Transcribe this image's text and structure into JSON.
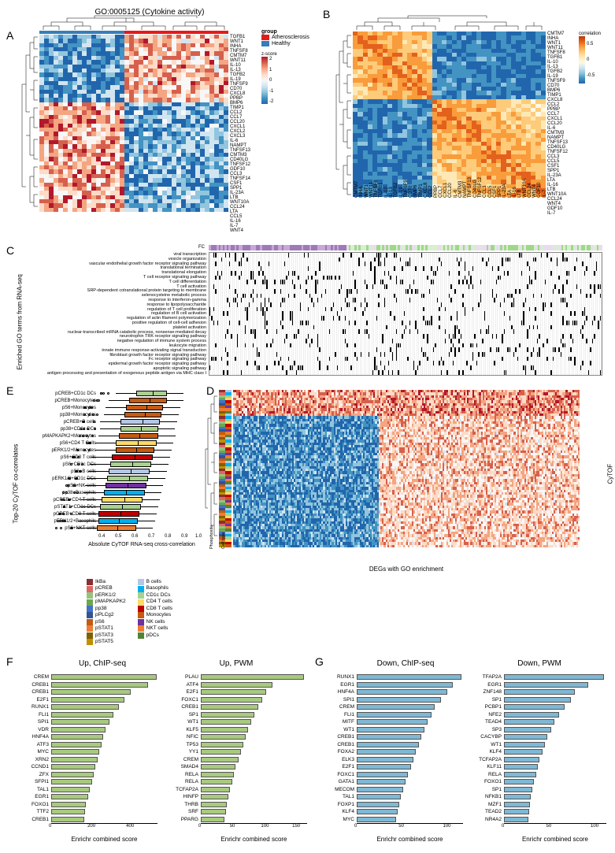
{
  "panelA": {
    "label": "A",
    "title": "GO:0005125 (Cytokine activity)",
    "genes": [
      "TGFB1",
      "WNT1",
      "INHA",
      "TNFSF8",
      "CMTM7",
      "WNT11",
      "IL-10",
      "IL-13",
      "TGFB2",
      "IL-19",
      "TNFSF9",
      "CD70",
      "CXCL8",
      "PPBP",
      "BMP6",
      "TIMP1",
      "CCL2",
      "CCL7",
      "CCL20",
      "CXCL1",
      "CXCL2",
      "CXCL3",
      "IL-6",
      "NAMPT",
      "TNFSF13",
      "CMTM3",
      "CD40LG",
      "TNFSF12",
      "GDF10",
      "CCL3",
      "TNFSF14",
      "CSF1",
      "SPP1",
      "IL-23A",
      "LTB",
      "WNT10A",
      "CCL24",
      "LTA",
      "CCL5",
      "IL-16",
      "IL-7",
      "WNT4"
    ],
    "legendTitle": "group",
    "legendItems": [
      {
        "label": "Atherosclerosis",
        "color": "#e41a1c"
      },
      {
        "label": "Healthy",
        "color": "#377eb8"
      }
    ],
    "zscoreTitle": "z-score",
    "zscoreTicks": [
      "2",
      "1",
      "0",
      "-1",
      "-2"
    ],
    "heatmapColors": [
      "#2166ac",
      "#4393c3",
      "#92c5de",
      "#d1e5f0",
      "#f7f7f7",
      "#fddbc7",
      "#f4a582",
      "#d6604d",
      "#b2182b"
    ],
    "nRows": 42,
    "nCols": 40
  },
  "panelB": {
    "label": "B",
    "genes": [
      "CMTM7",
      "INHA",
      "WNT1",
      "WNT11",
      "TNFSF8",
      "TGFB1",
      "IL-10",
      "IL-13",
      "TGFB2",
      "IL-19",
      "TNFSF9",
      "CD70",
      "BMP6",
      "TIMP1",
      "CXCL8",
      "CCL2",
      "PPBP",
      "CCL7",
      "CXCL1",
      "CCL20",
      "IL-6",
      "CMTM3",
      "NAMPT",
      "TNFSF13",
      "CD40LG",
      "TNFSF12",
      "CCL3",
      "CCL5",
      "CSF1",
      "SPP1",
      "IL-23A",
      "LTA",
      "IL-16",
      "LTB",
      "WNT10A",
      "CCL24",
      "WNT4",
      "GDF10",
      "IL-7"
    ],
    "corrTitle": "correlation",
    "corrTicks": [
      "0.5",
      "0",
      "-0.5"
    ],
    "heatmapColors": [
      "#2166ac",
      "#4393c3",
      "#92c5de",
      "#d1e5f0",
      "#fef8e6",
      "#fee9b6",
      "#fdcb7a",
      "#f89c3c",
      "#e3611c",
      "#b63a07"
    ],
    "nRows": 39,
    "nCols": 39
  },
  "panelC": {
    "label": "C",
    "sectionLabel": "Enriched GO terms from RNA-seq",
    "terms": [
      "viral transcription",
      "vesicle organization",
      "vascular endothelial growth factor receptor signaling pathway",
      "translational termination",
      "translational elongation",
      "T cell receptor signaling pathway",
      "T cell differentiation",
      "T cell activation",
      "SRP-dependent cotranslational protein targeting to membrane",
      "selenocysteine metabolic process",
      "response to interferon-gamma",
      "response to lipopolysaccharide",
      "regulation of T cell proliferation",
      "regulation of B cell activation",
      "regulation of actin filament polymerization",
      "positive regulation of cell-cell adhesion",
      "platelet activation",
      "nuclear-transcribed mRNA catabolic process, nonsense-mediated decay",
      "neurotrophin TRK receptor signaling pathway",
      "negative regulation of immune system process",
      "leukocyte migration",
      "innate immune response-activating signal transduction",
      "fibroblast growth factor receptor signaling pathway",
      "Fc receptor signaling pathway",
      "epidermal growth factor receptor signaling pathway",
      "apoptotic signaling pathway",
      "antigen processing and presentation of exogenous peptide antigen via MHC class I"
    ],
    "fcLabel": "FC",
    "fcColors": [
      "#9e7bb8",
      "#c7a8d8",
      "#e8dded",
      "#d8efd0",
      "#a0d889",
      "#5cb848"
    ],
    "nCols": 200
  },
  "panelD": {
    "label": "D",
    "sectionLabel": "CyTOF",
    "xLabel": "DEGs with GO enrichment",
    "phosphositeLabel": "Phosphosite",
    "cellTypeLabel": "Cell type",
    "heatmapColors": [
      "#2166ac",
      "#4393c3",
      "#92c5de",
      "#d1e5f0",
      "#f7f7f7",
      "#fddbc7",
      "#f4a582",
      "#d6604d",
      "#b2182b"
    ],
    "nRows": 60,
    "nCols": 200
  },
  "panelE": {
    "label": "E",
    "sectionLabel": "Top-20 CyTOF co-correlates",
    "xLabel": "Absolute CyTOF RNA-seq cross-correlation",
    "xTicks": [
      "0.4",
      "0.5",
      "0.6",
      "0.7",
      "0.8",
      "0.9",
      "1.0"
    ],
    "items": [
      {
        "label": "pCREB+CD1c DCs",
        "color": "#a9d18e",
        "med": 0.72,
        "q1": 0.62,
        "q3": 0.8
      },
      {
        "label": "pCREB+Monocytes",
        "color": "#c55a11",
        "med": 0.7,
        "q1": 0.58,
        "q3": 0.8
      },
      {
        "label": "pS6+Monocytes",
        "color": "#c55a11",
        "med": 0.68,
        "q1": 0.56,
        "q3": 0.78
      },
      {
        "label": "pp38+Monocytes",
        "color": "#c55a11",
        "med": 0.67,
        "q1": 0.55,
        "q3": 0.77
      },
      {
        "label": "pCREB+B cells",
        "color": "#b4c7e7",
        "med": 0.66,
        "q1": 0.53,
        "q3": 0.76
      },
      {
        "label": "pp38+CD1c DCs",
        "color": "#a9d18e",
        "med": 0.65,
        "q1": 0.53,
        "q3": 0.75
      },
      {
        "label": "pMAPKAPK2+Monocytes",
        "color": "#c55a11",
        "med": 0.64,
        "q1": 0.52,
        "q3": 0.75
      },
      {
        "label": "pS6+CD4 T Cells",
        "color": "#ffd966",
        "med": 0.63,
        "q1": 0.5,
        "q3": 0.74
      },
      {
        "label": "pERK1/2+Monocytes",
        "color": "#c55a11",
        "med": 0.62,
        "q1": 0.5,
        "q3": 0.73
      },
      {
        "label": "pS6+CD8 T cells",
        "color": "#c00000",
        "med": 0.61,
        "q1": 0.48,
        "q3": 0.72
      },
      {
        "label": "pS6+CD1c DCs",
        "color": "#a9d18e",
        "med": 0.6,
        "q1": 0.47,
        "q3": 0.71
      },
      {
        "label": "pS6+B cells",
        "color": "#b4c7e7",
        "med": 0.59,
        "q1": 0.46,
        "q3": 0.7
      },
      {
        "label": "pERK1/2+CD1c DCs",
        "color": "#a9d18e",
        "med": 0.58,
        "q1": 0.45,
        "q3": 0.69
      },
      {
        "label": "pS6+NK cells",
        "color": "#7030a0",
        "med": 0.57,
        "q1": 0.44,
        "q3": 0.68
      },
      {
        "label": "pp38+Basophils",
        "color": "#00b0f0",
        "med": 0.56,
        "q1": 0.43,
        "q3": 0.67
      },
      {
        "label": "pCREB+CD4 T cells",
        "color": "#ffd966",
        "med": 0.55,
        "q1": 0.42,
        "q3": 0.66
      },
      {
        "label": "pSTAT1+CD1c DCs",
        "color": "#a9d18e",
        "med": 0.54,
        "q1": 0.41,
        "q3": 0.65
      },
      {
        "label": "pCREB+CD8 T cells",
        "color": "#c00000",
        "med": 0.53,
        "q1": 0.4,
        "q3": 0.64
      },
      {
        "label": "pERK1/2+Basophils",
        "color": "#00b0f0",
        "med": 0.52,
        "q1": 0.4,
        "q3": 0.63
      },
      {
        "label": "pS6+NKT cells",
        "color": "#ed7d31",
        "med": 0.51,
        "q1": 0.39,
        "q3": 0.62
      }
    ],
    "legendPhospho": [
      {
        "label": "IkBa",
        "color": "#8b2e2e"
      },
      {
        "label": "pCREB",
        "color": "#e06666"
      },
      {
        "label": "pERK1/2",
        "color": "#93c47d"
      },
      {
        "label": "pMAPKAPK2",
        "color": "#6aa84f"
      },
      {
        "label": "pp38",
        "color": "#4472c4"
      },
      {
        "label": "pPLCg2",
        "color": "#305496"
      },
      {
        "label": "pS6",
        "color": "#c55a11"
      },
      {
        "label": "pSTAT1",
        "color": "#ed7d31"
      },
      {
        "label": "pSTAT3",
        "color": "#7f6000"
      },
      {
        "label": "pSTAT5",
        "color": "#bf9000"
      }
    ],
    "legendCellType": [
      {
        "label": "B cells",
        "color": "#b4c7e7"
      },
      {
        "label": "Basophils",
        "color": "#00b0f0"
      },
      {
        "label": "CD1c DCs",
        "color": "#a9d18e"
      },
      {
        "label": "CD4 T cells",
        "color": "#ffd966"
      },
      {
        "label": "CD8 T cells",
        "color": "#c00000"
      },
      {
        "label": "Monocytes",
        "color": "#c55a11"
      },
      {
        "label": "NK cells",
        "color": "#7030a0"
      },
      {
        "label": "NKT cells",
        "color": "#ed7d31"
      },
      {
        "label": "pDCs",
        "color": "#548235"
      }
    ]
  },
  "panelF": {
    "label": "F",
    "titleUp1": "Up, ChIP-seq",
    "titleUp2": "Up, PWM",
    "xLabel": "Enrichr combined score",
    "barColor": "#a8c97f",
    "up1": {
      "xTicks": [
        "0",
        "200",
        "400"
      ],
      "max": 550,
      "bars": [
        {
          "label": "CREM",
          "val": 545
        },
        {
          "label": "CREB1",
          "val": 500
        },
        {
          "label": "CREB1",
          "val": 410
        },
        {
          "label": "E2F1",
          "val": 380
        },
        {
          "label": "RUNX1",
          "val": 350
        },
        {
          "label": "FLI1",
          "val": 320
        },
        {
          "label": "SPI1",
          "val": 300
        },
        {
          "label": "VDR",
          "val": 280
        },
        {
          "label": "HNF4A",
          "val": 270
        },
        {
          "label": "ATF3",
          "val": 260
        },
        {
          "label": "MYC",
          "val": 250
        },
        {
          "label": "XRN2",
          "val": 240
        },
        {
          "label": "CCND1",
          "val": 230
        },
        {
          "label": "ZFX",
          "val": 220
        },
        {
          "label": "SFPI1",
          "val": 210
        },
        {
          "label": "TAL1",
          "val": 200
        },
        {
          "label": "EGR1",
          "val": 190
        },
        {
          "label": "FOXO1",
          "val": 180
        },
        {
          "label": "TTF2",
          "val": 175
        },
        {
          "label": "CREB1",
          "val": 170
        }
      ]
    },
    "up2": {
      "xTicks": [
        "0",
        "50",
        "100",
        "150"
      ],
      "max": 170,
      "bars": [
        {
          "label": "PLAU",
          "val": 165
        },
        {
          "label": "ATF4",
          "val": 115
        },
        {
          "label": "E2F1",
          "val": 105
        },
        {
          "label": "FOXC1",
          "val": 98
        },
        {
          "label": "CREB1",
          "val": 92
        },
        {
          "label": "SP1",
          "val": 85
        },
        {
          "label": "WT1",
          "val": 80
        },
        {
          "label": "KLF5",
          "val": 75
        },
        {
          "label": "NFIC",
          "val": 72
        },
        {
          "label": "TP53",
          "val": 68
        },
        {
          "label": "YY1",
          "val": 64
        },
        {
          "label": "CREM",
          "val": 60
        },
        {
          "label": "SMAD4",
          "val": 56
        },
        {
          "label": "RELA",
          "val": 53
        },
        {
          "label": "RELA",
          "val": 50
        },
        {
          "label": "TCFAP2A",
          "val": 47
        },
        {
          "label": "HINFP",
          "val": 44
        },
        {
          "label": "THRB",
          "val": 42
        },
        {
          "label": "SRF",
          "val": 40
        },
        {
          "label": "PPARG",
          "val": 38
        }
      ]
    }
  },
  "panelG": {
    "label": "G",
    "titleDown1": "Down, ChIP-seq",
    "titleDown2": "Down, PWM",
    "xLabel": "Enrichr combined score",
    "barColor": "#7fb8d4",
    "down1": {
      "xTicks": [
        "0",
        "50",
        "100"
      ],
      "max": 120,
      "bars": [
        {
          "label": "RUNX1",
          "val": 118
        },
        {
          "label": "EGR1",
          "val": 108
        },
        {
          "label": "HNF4A",
          "val": 102
        },
        {
          "label": "SPI1",
          "val": 95
        },
        {
          "label": "CREM",
          "val": 88
        },
        {
          "label": "FLI1",
          "val": 84
        },
        {
          "label": "MITF",
          "val": 80
        },
        {
          "label": "WT1",
          "val": 76
        },
        {
          "label": "CREB1",
          "val": 73
        },
        {
          "label": "CREB1",
          "val": 70
        },
        {
          "label": "FOXA2",
          "val": 67
        },
        {
          "label": "ELK3",
          "val": 64
        },
        {
          "label": "E2F1",
          "val": 61
        },
        {
          "label": "FOXC1",
          "val": 58
        },
        {
          "label": "GATA1",
          "val": 55
        },
        {
          "label": "MECOM",
          "val": 52
        },
        {
          "label": "TAL1",
          "val": 50
        },
        {
          "label": "FOXP1",
          "val": 48
        },
        {
          "label": "KLF4",
          "val": 46
        },
        {
          "label": "MYC",
          "val": 44
        }
      ]
    },
    "down2": {
      "xTicks": [
        "0",
        "50",
        "100"
      ],
      "max": 115,
      "bars": [
        {
          "label": "TFAP2A",
          "val": 112
        },
        {
          "label": "EGR1",
          "val": 95
        },
        {
          "label": "ZNF148",
          "val": 80
        },
        {
          "label": "SP1",
          "val": 75
        },
        {
          "label": "PCBP1",
          "val": 68
        },
        {
          "label": "NFE2",
          "val": 62
        },
        {
          "label": "TEAD4",
          "val": 57
        },
        {
          "label": "SP3",
          "val": 53
        },
        {
          "label": "CACYBP",
          "val": 49
        },
        {
          "label": "WT1",
          "val": 46
        },
        {
          "label": "KLF4",
          "val": 43
        },
        {
          "label": "TCFAP2A",
          "val": 40
        },
        {
          "label": "KLF11",
          "val": 38
        },
        {
          "label": "RELA",
          "val": 36
        },
        {
          "label": "FOXO1",
          "val": 34
        },
        {
          "label": "SP1",
          "val": 32
        },
        {
          "label": "NFKB1",
          "val": 30
        },
        {
          "label": "MZF1",
          "val": 29
        },
        {
          "label": "TEAD2",
          "val": 28
        },
        {
          "label": "NR4A2",
          "val": 27
        }
      ]
    }
  }
}
